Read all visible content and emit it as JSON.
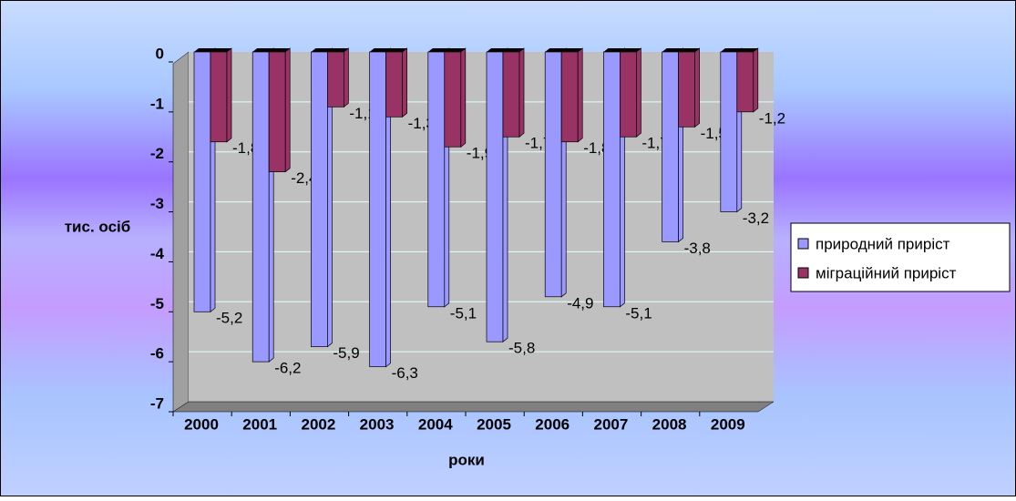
{
  "chart_data": {
    "type": "bar",
    "categories": [
      "2000",
      "2001",
      "2002",
      "2003",
      "2004",
      "2005",
      "2006",
      "2007",
      "2008",
      "2009"
    ],
    "series": [
      {
        "name": "природний приріст",
        "color": "#9999ff",
        "values": [
          -5.2,
          -6.2,
          -5.9,
          -6.3,
          -5.1,
          -5.8,
          -4.9,
          -5.1,
          -3.8,
          -3.2
        ],
        "value_labels": [
          "-5,2",
          "-6,2",
          "-5,9",
          "-6,3",
          "-5,1",
          "-5,8",
          "-4,9",
          "-5,1",
          "-3,8",
          "-3,2"
        ]
      },
      {
        "name": "міграційний приріст",
        "color": "#993366",
        "values": [
          -1.8,
          -2.4,
          -1.1,
          -1.3,
          -1.9,
          -1.7,
          -1.8,
          -1.7,
          -1.5,
          -1.2
        ],
        "value_labels": [
          "-1,8",
          "-2,4",
          "-1,1",
          "-1,3",
          "-1,9",
          "-1,7",
          "-1,8",
          "-1,7",
          "-1,5",
          "-1,2"
        ]
      }
    ],
    "x_label": "роки",
    "y_label": "тис. осіб",
    "ylim": [
      -7,
      0
    ],
    "yticks": [
      0,
      -1,
      -2,
      -3,
      -4,
      -5,
      -6,
      -7
    ],
    "grid": true,
    "legend": "right"
  }
}
